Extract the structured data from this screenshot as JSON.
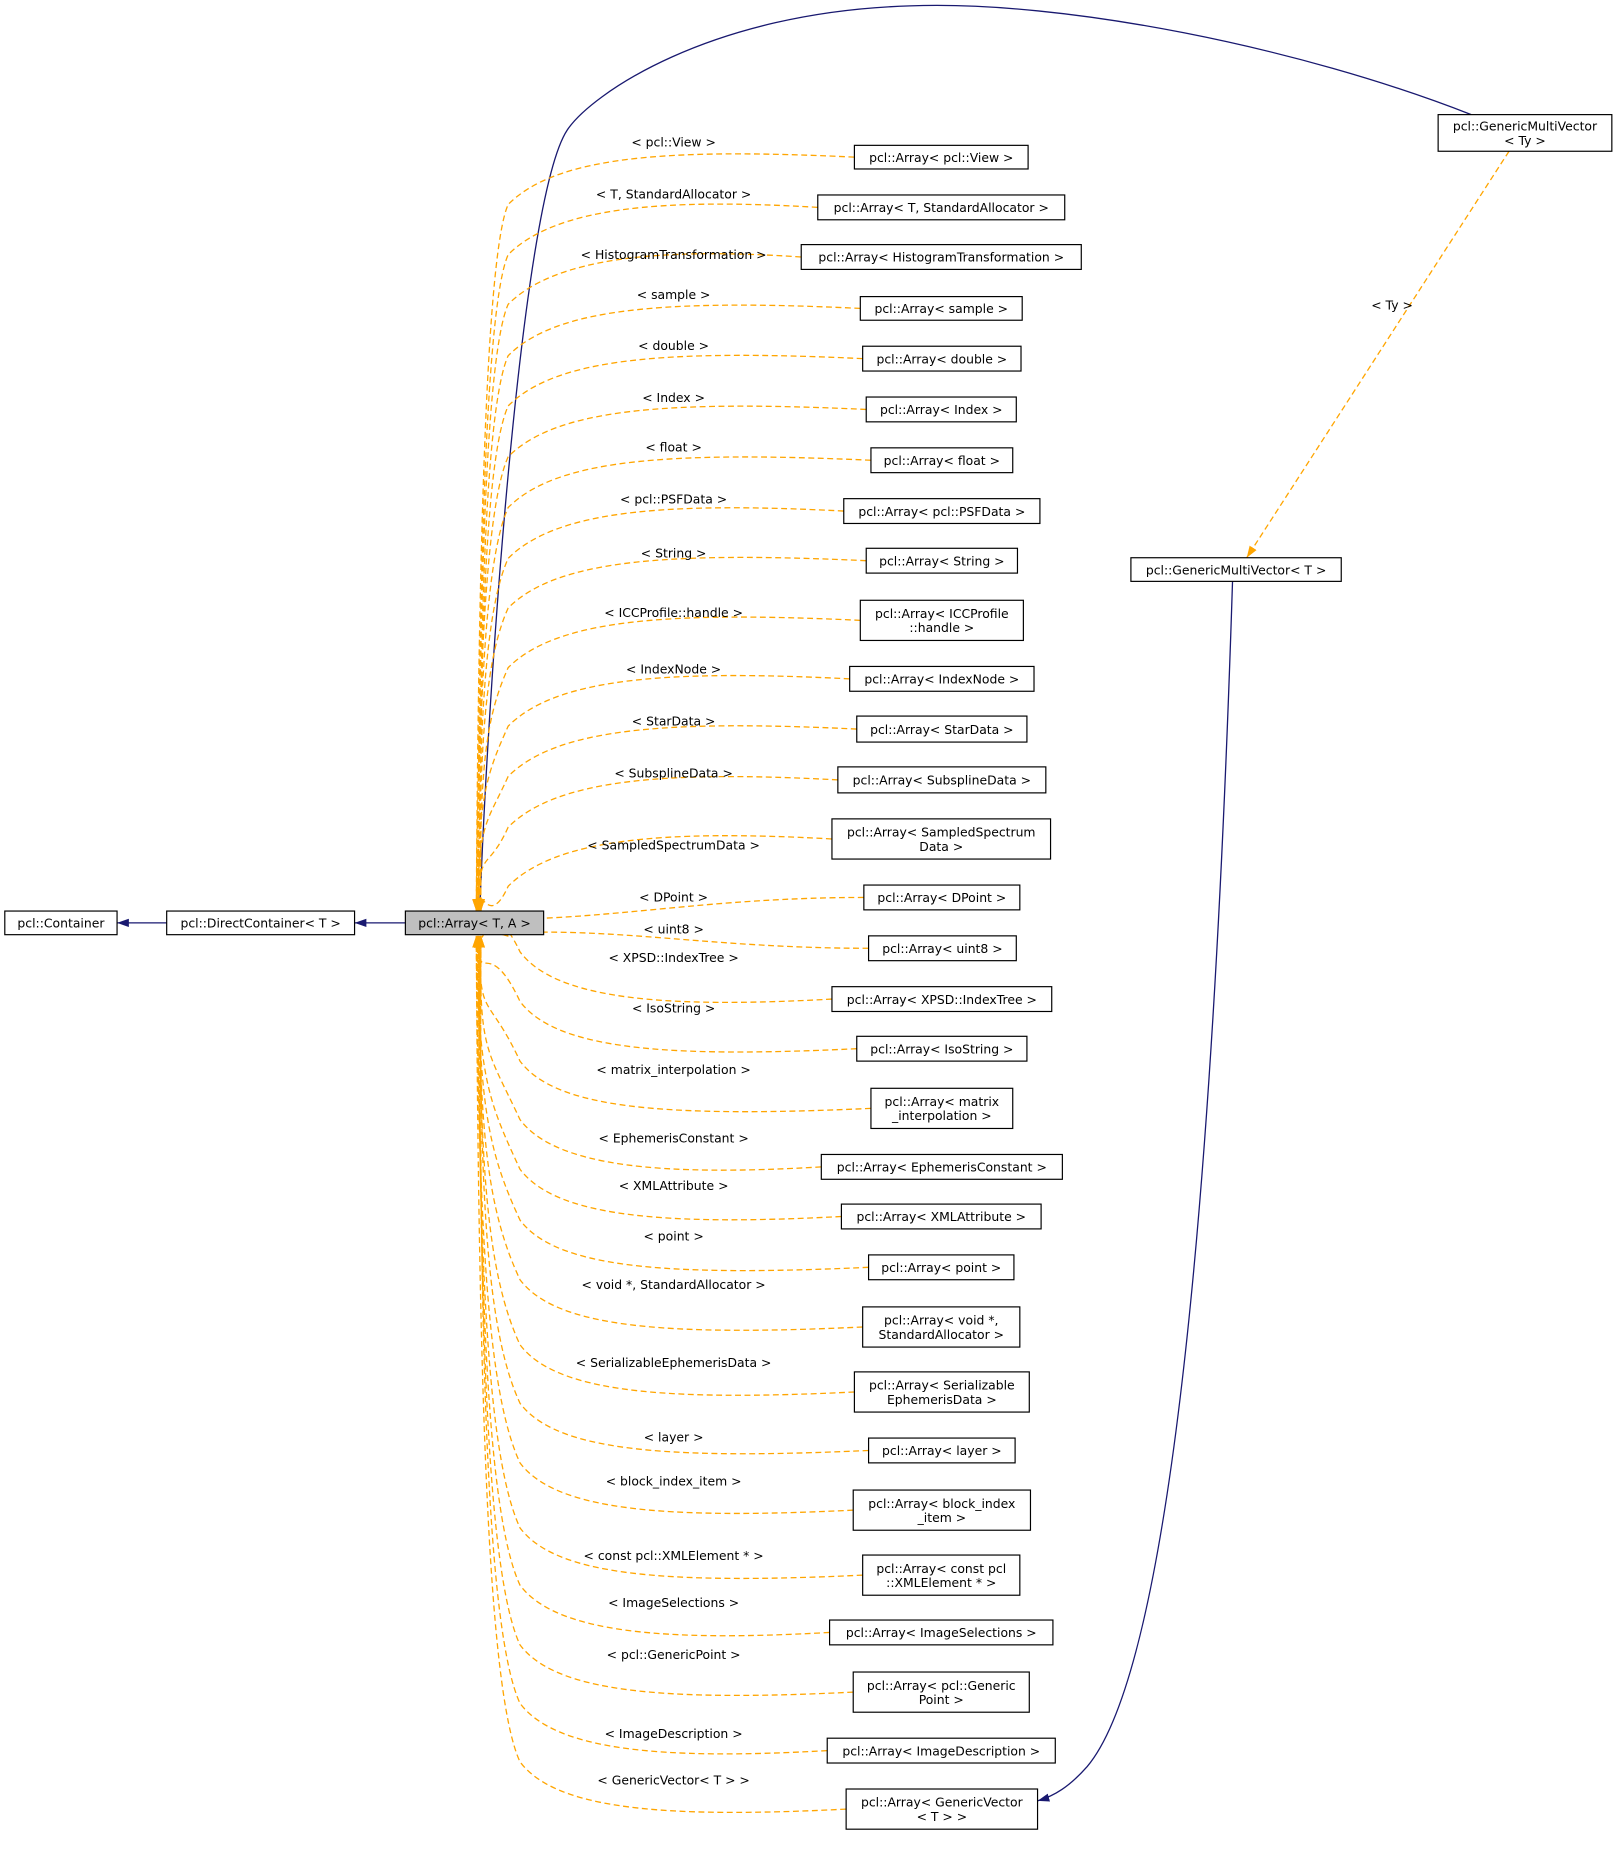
{
  "nodes": [
    {
      "lines": [
        "pcl::Container"
      ]
    },
    {
      "lines": [
        "pcl::DirectContainer< T >"
      ]
    },
    {
      "lines": [
        "pcl::Array< T, A >"
      ]
    },
    {
      "lines": [
        "pcl::GenericMultiVector",
        "< Ty >"
      ]
    },
    {
      "lines": [
        "pcl::GenericMultiVector< T >"
      ]
    }
  ],
  "edges": [
    {
      "label": "< Ty >"
    }
  ],
  "children": [
    {
      "edge_label": "< pcl::View >",
      "lines": [
        "pcl::Array< pcl::View >"
      ]
    },
    {
      "edge_label": "< T, StandardAllocator >",
      "lines": [
        "pcl::Array< T, StandardAllocator >"
      ]
    },
    {
      "edge_label": "< HistogramTransformation >",
      "lines": [
        "pcl::Array< HistogramTransformation >"
      ]
    },
    {
      "edge_label": "< sample >",
      "lines": [
        "pcl::Array< sample >"
      ]
    },
    {
      "edge_label": "< double >",
      "lines": [
        "pcl::Array< double >"
      ]
    },
    {
      "edge_label": "< Index >",
      "lines": [
        "pcl::Array< Index >"
      ]
    },
    {
      "edge_label": "< float >",
      "lines": [
        "pcl::Array< float >"
      ]
    },
    {
      "edge_label": "< pcl::PSFData >",
      "lines": [
        "pcl::Array< pcl::PSFData >"
      ]
    },
    {
      "edge_label": "< String >",
      "lines": [
        "pcl::Array< String >"
      ]
    },
    {
      "edge_label": "< ICCProfile::handle >",
      "lines": [
        "pcl::Array< ICCProfile",
        "::handle >"
      ]
    },
    {
      "edge_label": "< IndexNode >",
      "lines": [
        "pcl::Array< IndexNode >"
      ]
    },
    {
      "edge_label": "< StarData >",
      "lines": [
        "pcl::Array< StarData >"
      ]
    },
    {
      "edge_label": "< SubsplineData >",
      "lines": [
        "pcl::Array< SubsplineData >"
      ]
    },
    {
      "edge_label": "< SampledSpectrumData >",
      "lines": [
        "pcl::Array< SampledSpectrum",
        "Data >"
      ]
    },
    {
      "edge_label": "< DPoint >",
      "lines": [
        "pcl::Array< DPoint >"
      ]
    },
    {
      "edge_label": "< uint8 >",
      "lines": [
        "pcl::Array< uint8 >"
      ]
    },
    {
      "edge_label": "< XPSD::IndexTree >",
      "lines": [
        "pcl::Array< XPSD::IndexTree >"
      ]
    },
    {
      "edge_label": "< IsoString >",
      "lines": [
        "pcl::Array< IsoString >"
      ]
    },
    {
      "edge_label": "< matrix_interpolation >",
      "lines": [
        "pcl::Array< matrix",
        "_interpolation >"
      ]
    },
    {
      "edge_label": "< EphemerisConstant >",
      "lines": [
        "pcl::Array< EphemerisConstant >"
      ]
    },
    {
      "edge_label": "< XMLAttribute >",
      "lines": [
        "pcl::Array< XMLAttribute >"
      ]
    },
    {
      "edge_label": "< point >",
      "lines": [
        "pcl::Array< point >"
      ]
    },
    {
      "edge_label": "< void *, StandardAllocator >",
      "lines": [
        "pcl::Array< void *,",
        "StandardAllocator >"
      ]
    },
    {
      "edge_label": "< SerializableEphemerisData >",
      "lines": [
        "pcl::Array< Serializable",
        "EphemerisData >"
      ]
    },
    {
      "edge_label": "< layer >",
      "lines": [
        "pcl::Array< layer >"
      ]
    },
    {
      "edge_label": "< block_index_item >",
      "lines": [
        "pcl::Array< block_index",
        "_item >"
      ]
    },
    {
      "edge_label": "< const pcl::XMLElement * >",
      "lines": [
        "pcl::Array< const pcl",
        "::XMLElement * >"
      ]
    },
    {
      "edge_label": "< ImageSelections >",
      "lines": [
        "pcl::Array< ImageSelections >"
      ]
    },
    {
      "edge_label": "< pcl::GenericPoint >",
      "lines": [
        "pcl::Array< pcl::Generic",
        "Point >"
      ]
    },
    {
      "edge_label": "< ImageDescription >",
      "lines": [
        "pcl::Array< ImageDescription >"
      ]
    },
    {
      "edge_label": "< GenericVector< T > >",
      "lines": [
        "pcl::Array< GenericVector",
        "< T > >"
      ]
    }
  ]
}
